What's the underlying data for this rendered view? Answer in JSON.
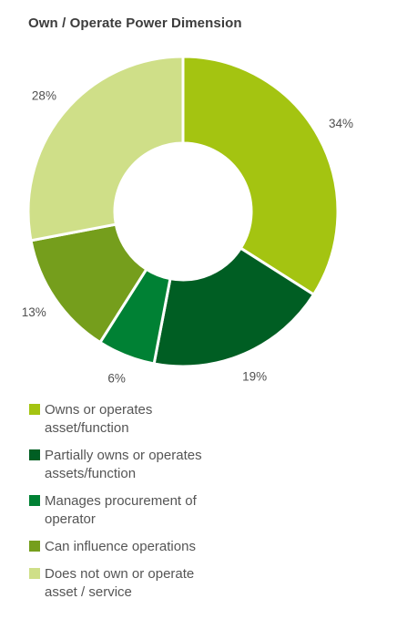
{
  "chart_data": {
    "type": "pie",
    "variant": "donut",
    "title": "Own / Operate Power Dimension",
    "categories": [
      "Owns or operates asset/function",
      "Partially owns or operates assets/function",
      "Manages procurement of operator",
      "Can influence operations",
      "Does not own or operate asset / service"
    ],
    "values": [
      34,
      19,
      6,
      13,
      28
    ],
    "value_labels": [
      "34%",
      "19%",
      "6%",
      "13%",
      "28%"
    ],
    "colors": [
      "#a4c411",
      "#005e23",
      "#008134",
      "#759e1c",
      "#cfdf88"
    ],
    "legend_placement": "bottom",
    "start": "top",
    "direction": "clockwise"
  }
}
